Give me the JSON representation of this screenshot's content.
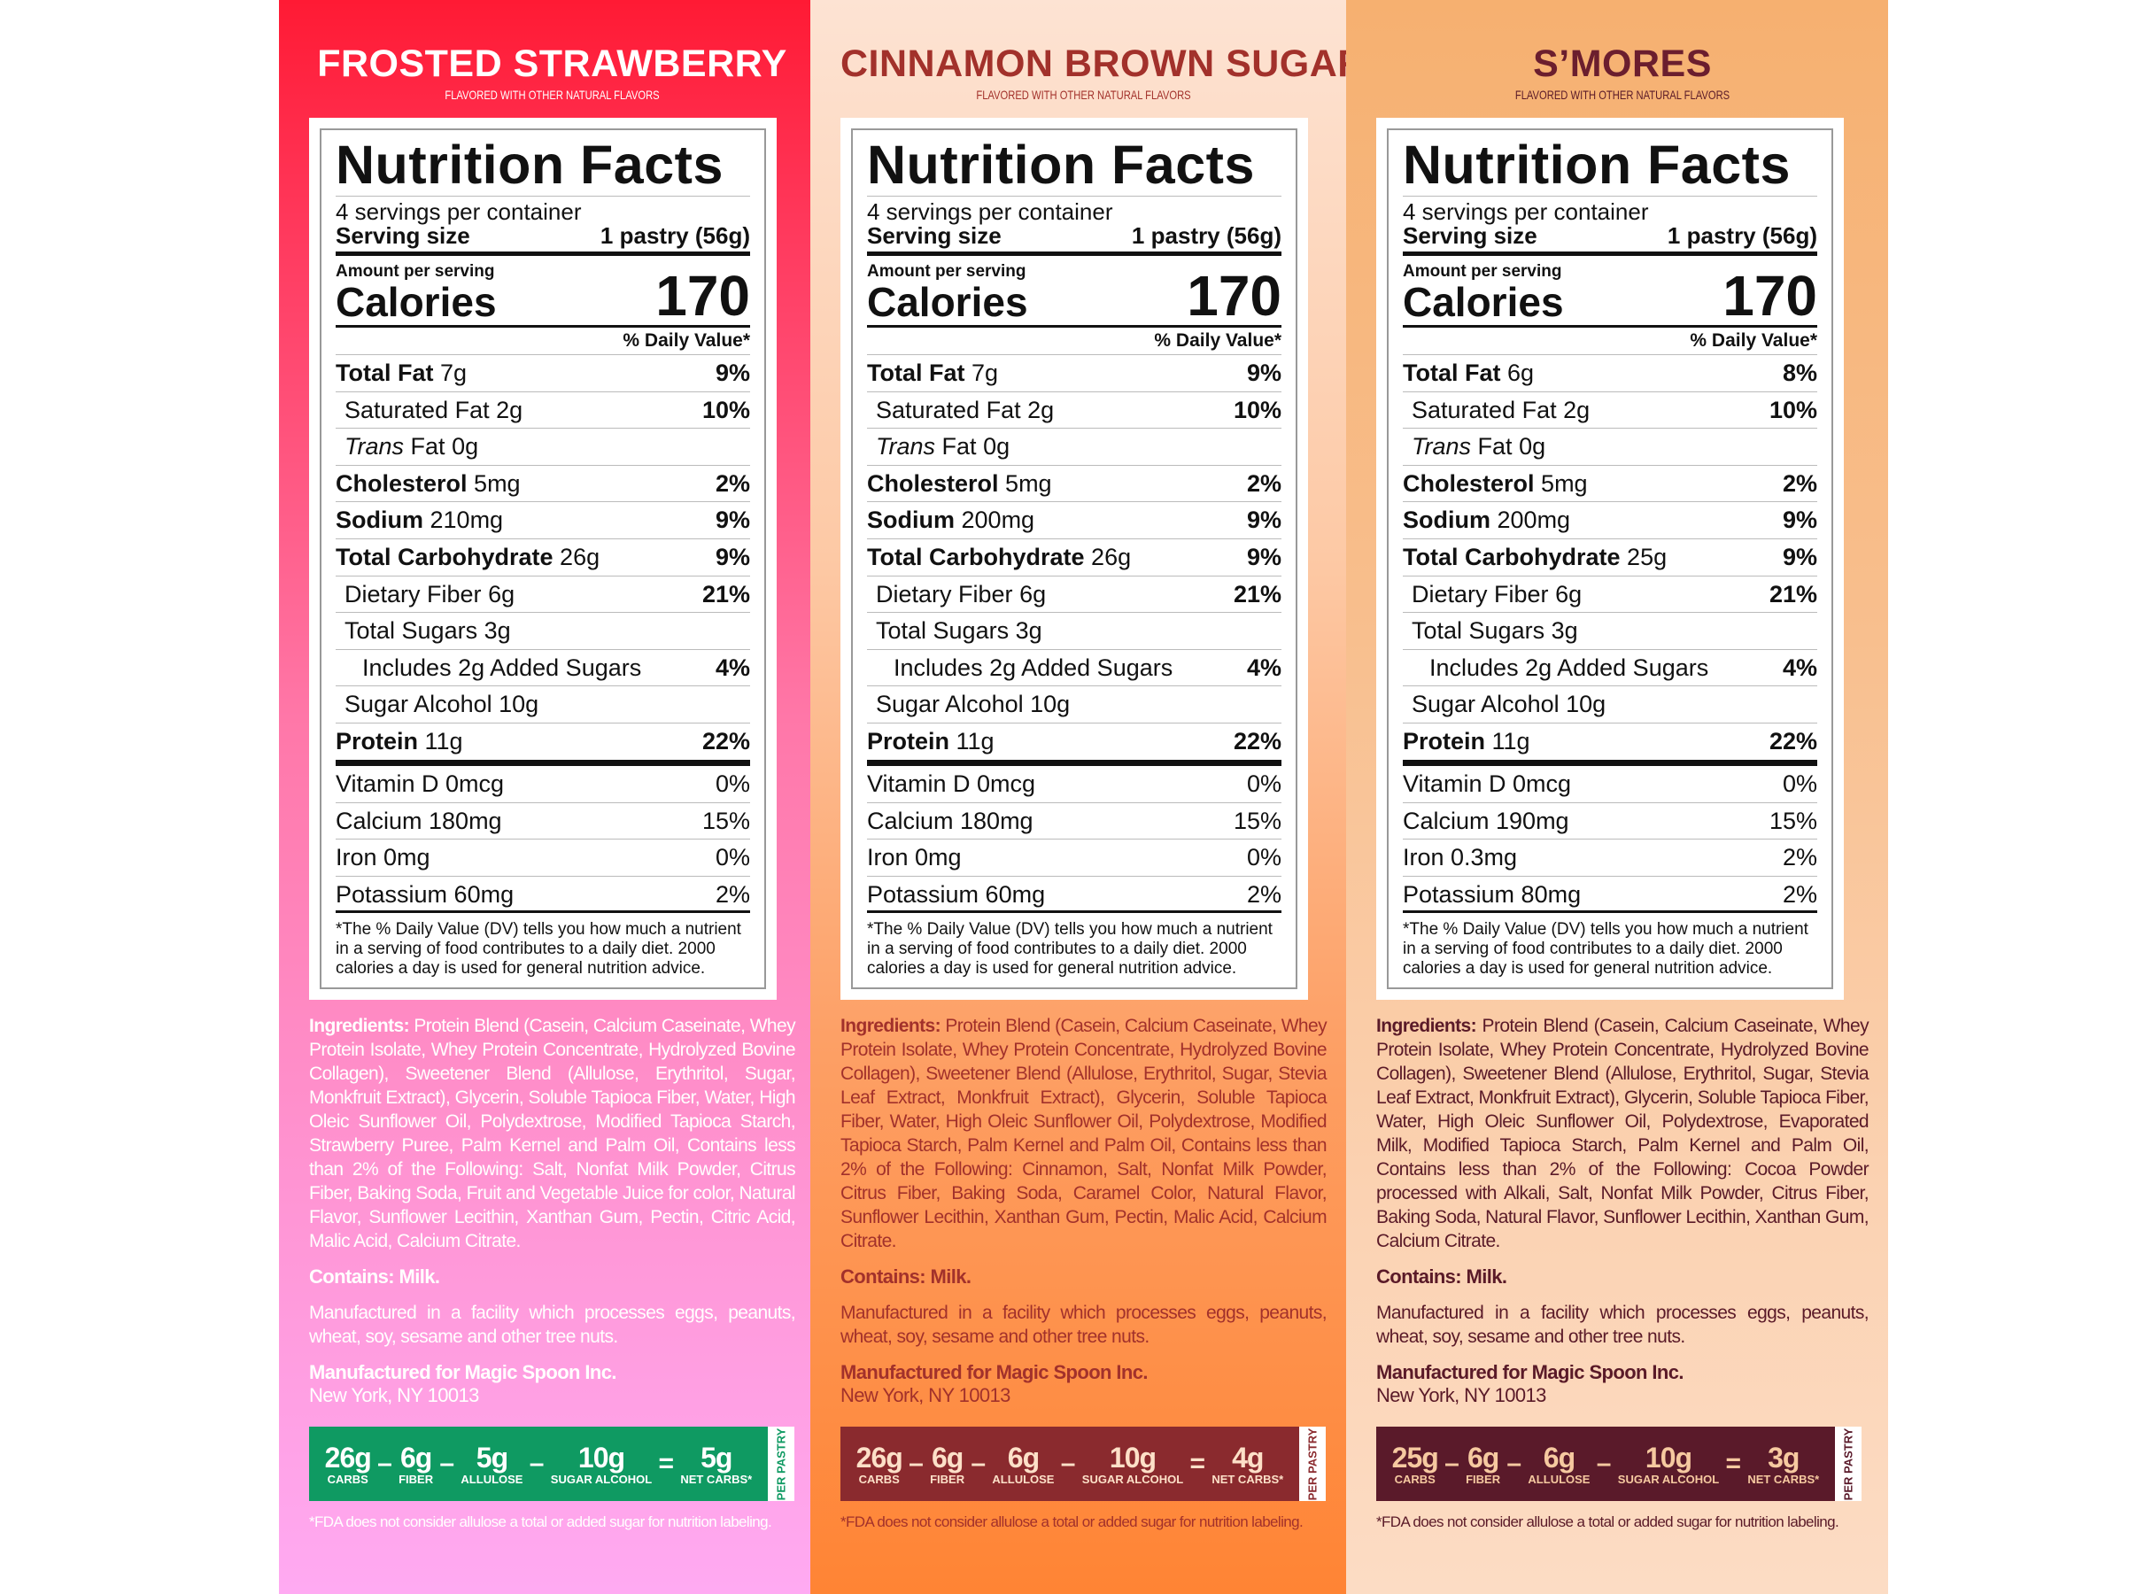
{
  "panels": [
    {
      "title": "FROSTED STRAWBERRY",
      "subtitle": "FLAVORED WITH OTHER NATURAL FLAVORS",
      "colors": {
        "title": "#ffffff",
        "text": "#ffffff",
        "netcarb_bg": "#0f9a62",
        "netcarb_text": "#ffffff"
      },
      "label": {
        "title": "Nutrition Facts",
        "servings": "4 servings per container",
        "serving_size_label": "Serving size",
        "serving_size_value": "1 pastry (56g)",
        "amount_label": "Amount per serving",
        "calories_label": "Calories",
        "calories": "170",
        "dv_header": "% Daily Value*",
        "nutrients": [
          {
            "italic": "",
            "name": "Total Fat",
            "bold": true,
            "amount": "7g",
            "dv": "9%",
            "indent": 0
          },
          {
            "italic": "",
            "name": "Saturated Fat",
            "bold": false,
            "amount": "2g",
            "dv": "10%",
            "indent": 1
          },
          {
            "italic": "Trans",
            "name": "Fat",
            "bold": false,
            "amount": "0g",
            "dv": "",
            "indent": 1
          },
          {
            "italic": "",
            "name": "Cholesterol",
            "bold": true,
            "amount": "5mg",
            "dv": "2%",
            "indent": 0
          },
          {
            "italic": "",
            "name": "Sodium",
            "bold": true,
            "amount": "210mg",
            "dv": "9%",
            "indent": 0
          },
          {
            "italic": "",
            "name": "Total Carbohydrate",
            "bold": true,
            "amount": "26g",
            "dv": "9%",
            "indent": 0
          },
          {
            "italic": "",
            "name": "Dietary Fiber",
            "bold": false,
            "amount": "6g",
            "dv": "21%",
            "indent": 1
          },
          {
            "italic": "",
            "name": "Total Sugars",
            "bold": false,
            "amount": "3g",
            "dv": "",
            "indent": 1
          },
          {
            "italic": "",
            "name": "Includes 2g Added Sugars",
            "bold": false,
            "amount": "",
            "dv": "4%",
            "indent": 2
          },
          {
            "italic": "",
            "name": "Sugar Alcohol",
            "bold": false,
            "amount": "10g",
            "dv": "",
            "indent": 1
          },
          {
            "italic": "",
            "name": "Protein",
            "bold": true,
            "amount": "11g",
            "dv": "22%",
            "indent": 0
          }
        ],
        "vitamins": [
          {
            "name": "Vitamin D 0mcg",
            "dv": "0%"
          },
          {
            "name": "Calcium 180mg",
            "dv": "15%"
          },
          {
            "name": "Iron 0mg",
            "dv": "0%"
          },
          {
            "name": "Potassium 60mg",
            "dv": "2%"
          }
        ],
        "footnote": "*The % Daily Value (DV) tells you how much a nutrient in a serving of food contributes to a daily diet. 2000 calories a day is used for general nutrition advice."
      },
      "ingredients_label": "Ingredients:",
      "ingredients": "Protein Blend (Casein, Calcium Caseinate, Whey Protein Isolate, Whey Protein Concentrate, Hydrolyzed Bovine Collagen), Sweetener Blend (Allulose, Erythritol, Sugar, Monkfruit Extract), Glycerin, Soluble Tapioca Fiber, Water, High Oleic Sunflower Oil, Polydextrose, Modified Tapioca Starch, Strawberry Puree, Palm Kernel and Palm Oil, Contains less than 2% of the Following: Salt, Nonfat Milk Powder, Citrus Fiber, Baking Soda, Fruit and Vegetable Juice for color, Natural Flavor, Sunflower Lecithin, Xanthan Gum, Pectin, Citric Acid, Malic Acid, Calcium Citrate.",
      "contains": "Contains: Milk.",
      "facility": "Manufactured in a facility which processes eggs, peanuts, wheat, soy, sesame and other tree nuts.",
      "mfg_label": "Manufactured for Magic Spoon Inc.",
      "mfg_address": "New York, NY 10013",
      "netcarbs": [
        {
          "value": "26g",
          "label": "CARBS"
        },
        {
          "value": "6g",
          "label": "FIBER"
        },
        {
          "value": "5g",
          "label": "ALLULOSE"
        },
        {
          "value": "10g",
          "label": "SUGAR ALCOHOL"
        },
        {
          "value": "5g",
          "label": "NET CARBS*"
        }
      ],
      "operators": [
        "–",
        "–",
        "–",
        "="
      ],
      "per_pastry": "PER PASTRY",
      "fda_note": "*FDA does not consider allulose a total or added sugar for nutrition labeling."
    },
    {
      "title": "CINNAMON BROWN SUGAR",
      "subtitle": "FLAVORED WITH OTHER NATURAL FLAVORS",
      "colors": {
        "title": "#a2312b",
        "text": "#a2312b",
        "netcarb_bg": "#8a2a2e",
        "netcarb_text": "#fde0c8"
      },
      "label": {
        "title": "Nutrition Facts",
        "servings": "4 servings per container",
        "serving_size_label": "Serving size",
        "serving_size_value": "1 pastry (56g)",
        "amount_label": "Amount per serving",
        "calories_label": "Calories",
        "calories": "170",
        "dv_header": "% Daily Value*",
        "nutrients": [
          {
            "italic": "",
            "name": "Total Fat",
            "bold": true,
            "amount": "7g",
            "dv": "9%",
            "indent": 0
          },
          {
            "italic": "",
            "name": "Saturated Fat",
            "bold": false,
            "amount": "2g",
            "dv": "10%",
            "indent": 1
          },
          {
            "italic": "Trans",
            "name": "Fat",
            "bold": false,
            "amount": "0g",
            "dv": "",
            "indent": 1
          },
          {
            "italic": "",
            "name": "Cholesterol",
            "bold": true,
            "amount": "5mg",
            "dv": "2%",
            "indent": 0
          },
          {
            "italic": "",
            "name": "Sodium",
            "bold": true,
            "amount": "200mg",
            "dv": "9%",
            "indent": 0
          },
          {
            "italic": "",
            "name": "Total Carbohydrate",
            "bold": true,
            "amount": "26g",
            "dv": "9%",
            "indent": 0
          },
          {
            "italic": "",
            "name": "Dietary Fiber",
            "bold": false,
            "amount": "6g",
            "dv": "21%",
            "indent": 1
          },
          {
            "italic": "",
            "name": "Total Sugars",
            "bold": false,
            "amount": "3g",
            "dv": "",
            "indent": 1
          },
          {
            "italic": "",
            "name": "Includes 2g Added Sugars",
            "bold": false,
            "amount": "",
            "dv": "4%",
            "indent": 2
          },
          {
            "italic": "",
            "name": "Sugar Alcohol",
            "bold": false,
            "amount": "10g",
            "dv": "",
            "indent": 1
          },
          {
            "italic": "",
            "name": "Protein",
            "bold": true,
            "amount": "11g",
            "dv": "22%",
            "indent": 0
          }
        ],
        "vitamins": [
          {
            "name": "Vitamin D 0mcg",
            "dv": "0%"
          },
          {
            "name": "Calcium 180mg",
            "dv": "15%"
          },
          {
            "name": "Iron 0mg",
            "dv": "0%"
          },
          {
            "name": "Potassium 60mg",
            "dv": "2%"
          }
        ],
        "footnote": "*The % Daily Value (DV) tells you how much a nutrient in a serving of food contributes to a daily diet. 2000 calories a day is used for general nutrition advice."
      },
      "ingredients_label": "Ingredients:",
      "ingredients": "Protein Blend (Casein, Calcium Caseinate, Whey Protein Isolate, Whey Protein Concentrate, Hydrolyzed Bovine Collagen), Sweetener Blend (Allulose, Erythritol, Sugar, Stevia Leaf Extract, Monkfruit Extract), Glycerin, Soluble Tapioca Fiber, Water, High Oleic Sunflower Oil, Polydextrose, Modified Tapioca Starch, Palm Kernel and Palm Oil, Contains less than 2% of the Following: Cinnamon, Salt, Nonfat Milk Powder, Citrus Fiber, Baking Soda, Caramel Color, Natural Flavor, Sunflower Lecithin, Xanthan Gum, Pectin, Malic Acid, Calcium Citrate.",
      "contains": "Contains: Milk.",
      "facility": "Manufactured in a facility which processes eggs, peanuts, wheat, soy, sesame and other tree nuts.",
      "mfg_label": "Manufactured for Magic Spoon Inc.",
      "mfg_address": "New York, NY 10013",
      "netcarbs": [
        {
          "value": "26g",
          "label": "CARBS"
        },
        {
          "value": "6g",
          "label": "FIBER"
        },
        {
          "value": "6g",
          "label": "ALLULOSE"
        },
        {
          "value": "10g",
          "label": "SUGAR ALCOHOL"
        },
        {
          "value": "4g",
          "label": "NET CARBS*"
        }
      ],
      "operators": [
        "–",
        "–",
        "–",
        "="
      ],
      "per_pastry": "PER PASTRY",
      "fda_note": "*FDA does not consider allulose a total or added sugar for nutrition labeling."
    },
    {
      "title": "S’MORES",
      "subtitle": "FLAVORED WITH OTHER NATURAL FLAVORS",
      "colors": {
        "title": "#6b1e2e",
        "text": "#5a1a28",
        "netcarb_bg": "#5a1a2a",
        "netcarb_text": "#f6c9a0"
      },
      "label": {
        "title": "Nutrition Facts",
        "servings": "4 servings per container",
        "serving_size_label": "Serving size",
        "serving_size_value": "1 pastry (56g)",
        "amount_label": "Amount per serving",
        "calories_label": "Calories",
        "calories": "170",
        "dv_header": "% Daily Value*",
        "nutrients": [
          {
            "italic": "",
            "name": "Total Fat",
            "bold": true,
            "amount": "6g",
            "dv": "8%",
            "indent": 0
          },
          {
            "italic": "",
            "name": "Saturated Fat",
            "bold": false,
            "amount": "2g",
            "dv": "10%",
            "indent": 1
          },
          {
            "italic": "Trans",
            "name": "Fat",
            "bold": false,
            "amount": "0g",
            "dv": "",
            "indent": 1
          },
          {
            "italic": "",
            "name": "Cholesterol",
            "bold": true,
            "amount": "5mg",
            "dv": "2%",
            "indent": 0
          },
          {
            "italic": "",
            "name": "Sodium",
            "bold": true,
            "amount": "200mg",
            "dv": "9%",
            "indent": 0
          },
          {
            "italic": "",
            "name": "Total Carbohydrate",
            "bold": true,
            "amount": "25g",
            "dv": "9%",
            "indent": 0
          },
          {
            "italic": "",
            "name": "Dietary Fiber",
            "bold": false,
            "amount": "6g",
            "dv": "21%",
            "indent": 1
          },
          {
            "italic": "",
            "name": "Total Sugars",
            "bold": false,
            "amount": "3g",
            "dv": "",
            "indent": 1
          },
          {
            "italic": "",
            "name": "Includes 2g Added Sugars",
            "bold": false,
            "amount": "",
            "dv": "4%",
            "indent": 2
          },
          {
            "italic": "",
            "name": "Sugar Alcohol",
            "bold": false,
            "amount": "10g",
            "dv": "",
            "indent": 1
          },
          {
            "italic": "",
            "name": "Protein",
            "bold": true,
            "amount": "11g",
            "dv": "22%",
            "indent": 0
          }
        ],
        "vitamins": [
          {
            "name": "Vitamin D 0mcg",
            "dv": "0%"
          },
          {
            "name": "Calcium 190mg",
            "dv": "15%"
          },
          {
            "name": "Iron 0.3mg",
            "dv": "2%"
          },
          {
            "name": "Potassium 80mg",
            "dv": "2%"
          }
        ],
        "footnote": "*The % Daily Value (DV) tells you how much a nutrient in a serving of food contributes to a daily diet. 2000 calories a day is used for general nutrition advice."
      },
      "ingredients_label": "Ingredients:",
      "ingredients": "Protein Blend (Casein, Calcium Caseinate, Whey Protein Isolate, Whey Protein Concentrate, Hydrolyzed Bovine Collagen), Sweetener Blend (Allulose, Erythritol, Sugar, Stevia Leaf Extract, Monkfruit Extract), Glycerin, Soluble Tapioca Fiber, Water, High Oleic Sunflower Oil, Polydextrose, Evaporated Milk, Modified Tapioca Starch, Palm Kernel and Palm Oil, Contains less than 2% of the Following: Cocoa Powder processed with Alkali, Salt, Nonfat Milk Powder, Citrus Fiber, Baking Soda, Natural Flavor, Sunflower Lecithin, Xanthan Gum, Calcium Citrate.",
      "contains": "Contains: Milk.",
      "facility": "Manufactured in a facility which processes eggs, peanuts, wheat, soy, sesame and other tree nuts.",
      "mfg_label": "Manufactured for Magic Spoon Inc.",
      "mfg_address": "New York, NY 10013",
      "netcarbs": [
        {
          "value": "25g",
          "label": "CARBS"
        },
        {
          "value": "6g",
          "label": "FIBER"
        },
        {
          "value": "6g",
          "label": "ALLULOSE"
        },
        {
          "value": "10g",
          "label": "SUGAR ALCOHOL"
        },
        {
          "value": "3g",
          "label": "NET CARBS*"
        }
      ],
      "operators": [
        "–",
        "–",
        "–",
        "="
      ],
      "per_pastry": "PER PASTRY",
      "fda_note": "*FDA does not consider allulose a total or added sugar for nutrition labeling."
    }
  ]
}
